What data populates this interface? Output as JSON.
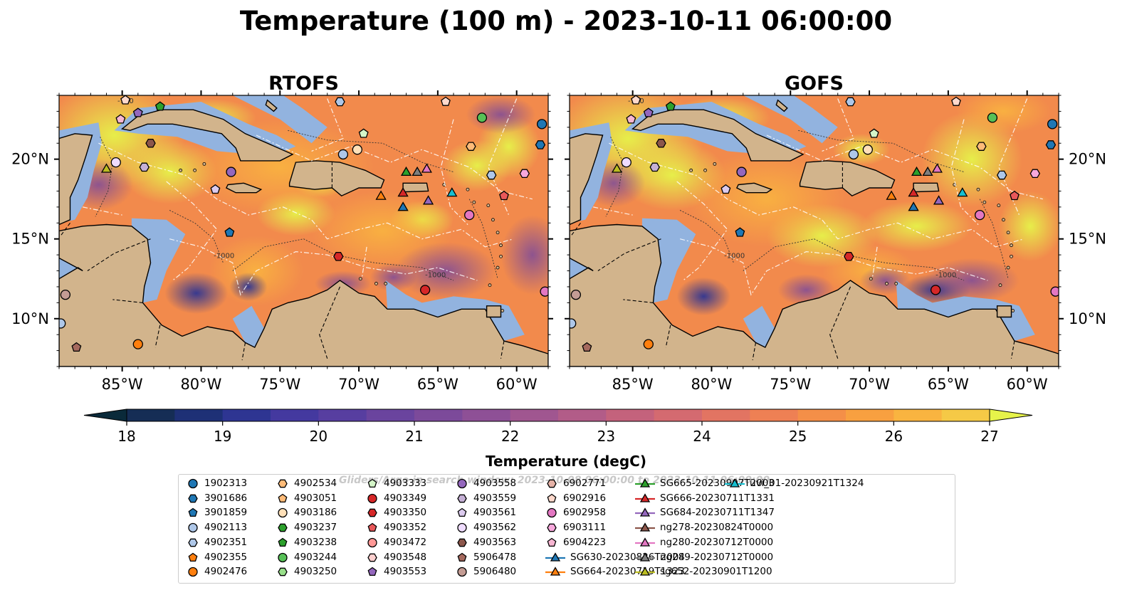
{
  "title": "Temperature (100 m) - 2023-10-11 06:00:00",
  "panels": [
    {
      "title": "RTOFS",
      "variant": "rtofs"
    },
    {
      "title": "GOFS",
      "variant": "gofs"
    }
  ],
  "map_extent": {
    "lon": [
      -89,
      -58
    ],
    "lat": [
      7,
      24
    ]
  },
  "lon_ticks": [
    {
      "value": -85,
      "label": "85°W"
    },
    {
      "value": -80,
      "label": "80°W"
    },
    {
      "value": -75,
      "label": "75°W"
    },
    {
      "value": -70,
      "label": "70°W"
    },
    {
      "value": -65,
      "label": "65°W"
    },
    {
      "value": -60,
      "label": "60°W"
    }
  ],
  "lat_ticks": [
    {
      "value": 10,
      "label": "10°N"
    },
    {
      "value": 15,
      "label": "15°N"
    },
    {
      "value": 20,
      "label": "20°N"
    }
  ],
  "contour_labels": [
    "-1000",
    "-100",
    "-1000"
  ],
  "colorbar": {
    "title": "Temperature (degC)",
    "min": 18,
    "max": 27,
    "step": 0.5,
    "ticks": [
      "18",
      "19",
      "20",
      "21",
      "22",
      "23",
      "24",
      "25",
      "26",
      "27"
    ],
    "colors": [
      "#0a2a3a",
      "#152d55",
      "#1e3076",
      "#2e3592",
      "#44399f",
      "#573ea0",
      "#6a449e",
      "#7c4a9a",
      "#8e5096",
      "#a05690",
      "#b25c88",
      "#c4627c",
      "#d46a70",
      "#e27462",
      "#ee8054",
      "#f48f48",
      "#f8a040",
      "#f9b440",
      "#f5c946",
      "#e6f34a"
    ]
  },
  "legend": {
    "watermark": "Gliders/Argo in search window: 2023-10-08 06:00:00 to 2023-10-11 06:00:00",
    "items": [
      {
        "label": "1902313",
        "marker": "circle",
        "color": "#1f77b4"
      },
      {
        "label": "3901686",
        "marker": "hexagon",
        "color": "#1f77b4"
      },
      {
        "label": "3901859",
        "marker": "pentagon",
        "color": "#1f77b4"
      },
      {
        "label": "4902113",
        "marker": "circle",
        "color": "#aec7e8"
      },
      {
        "label": "4902351",
        "marker": "hexagon",
        "color": "#aec7e8"
      },
      {
        "label": "4902355",
        "marker": "pentagon",
        "color": "#ff7f0e"
      },
      {
        "label": "4902476",
        "marker": "circle",
        "color": "#ff7f0e"
      },
      {
        "label": "4902534",
        "marker": "hexagon",
        "color": "#ffbb78"
      },
      {
        "label": "4903051",
        "marker": "pentagon",
        "color": "#ffbb78"
      },
      {
        "label": "4903186",
        "marker": "circle",
        "color": "#ffe0b8"
      },
      {
        "label": "4903237",
        "marker": "hexagon",
        "color": "#2ca02c"
      },
      {
        "label": "4903238",
        "marker": "pentagon",
        "color": "#2ca02c"
      },
      {
        "label": "4903244",
        "marker": "circle",
        "color": "#57c057"
      },
      {
        "label": "4903250",
        "marker": "hexagon",
        "color": "#98df8a"
      },
      {
        "label": "4903333",
        "marker": "pentagon",
        "color": "#d4f5c8"
      },
      {
        "label": "4903349",
        "marker": "circle",
        "color": "#d62728"
      },
      {
        "label": "4903350",
        "marker": "hexagon",
        "color": "#d62728"
      },
      {
        "label": "4903352",
        "marker": "pentagon",
        "color": "#e8585a"
      },
      {
        "label": "4903472",
        "marker": "circle",
        "color": "#ff9896"
      },
      {
        "label": "4903548",
        "marker": "hexagon",
        "color": "#ffd0cf"
      },
      {
        "label": "4903553",
        "marker": "pentagon",
        "color": "#9467bd"
      },
      {
        "label": "4903558",
        "marker": "circle",
        "color": "#9467bd"
      },
      {
        "label": "4903559",
        "marker": "hexagon",
        "color": "#c5b0d5"
      },
      {
        "label": "4903561",
        "marker": "pentagon",
        "color": "#dccbee"
      },
      {
        "label": "4903562",
        "marker": "circle",
        "color": "#efdcff"
      },
      {
        "label": "4903563",
        "marker": "hexagon",
        "color": "#8c564b"
      },
      {
        "label": "5906478",
        "marker": "pentagon",
        "color": "#a5695e"
      },
      {
        "label": "5906480",
        "marker": "circle",
        "color": "#c49c94"
      },
      {
        "label": "6902771",
        "marker": "hexagon",
        "color": "#e6b3a8"
      },
      {
        "label": "6902916",
        "marker": "pentagon",
        "color": "#ffd9cc"
      },
      {
        "label": "6902958",
        "marker": "circle",
        "color": "#e377c2"
      },
      {
        "label": "6903111",
        "marker": "hexagon",
        "color": "#f7a8dc"
      },
      {
        "label": "6904223",
        "marker": "pentagon",
        "color": "#f7b6d2"
      },
      {
        "label": "SG630-20230826T2004",
        "marker": "triangle-line",
        "color": "#1f77b4"
      },
      {
        "label": "SG664-20230719T1323",
        "marker": "triangle-line",
        "color": "#ff7f0e"
      },
      {
        "label": "SG665-20230907T2003",
        "marker": "triangle-line",
        "color": "#2ca02c"
      },
      {
        "label": "SG666-20230711T1331",
        "marker": "triangle-line",
        "color": "#d62728"
      },
      {
        "label": "SG684-20230711T1347",
        "marker": "triangle-line",
        "color": "#9467bd"
      },
      {
        "label": "ng278-20230824T0000",
        "marker": "triangle-line",
        "color": "#8c564b"
      },
      {
        "label": "ng280-20230712T0000",
        "marker": "triangle-line",
        "color": "#e377c2"
      },
      {
        "label": "ng289-20230712T0000",
        "marker": "triangle-line",
        "color": "#7f7f7f"
      },
      {
        "label": "sg652-20230901T1200",
        "marker": "triangle-line",
        "color": "#bcbd22"
      },
      {
        "label": "uvi_01-20230921T1324",
        "marker": "triangle-line",
        "color": "#17becf"
      }
    ]
  },
  "stations": [
    {
      "lon": -85.1,
      "lat": 22.5,
      "item": "6904223"
    },
    {
      "lon": -84.0,
      "lat": 22.9,
      "item": "4903553"
    },
    {
      "lon": -82.6,
      "lat": 23.3,
      "item": "4903238"
    },
    {
      "lon": -83.2,
      "lat": 21.0,
      "item": "4903563"
    },
    {
      "lon": -85.4,
      "lat": 19.8,
      "item": "4903562"
    },
    {
      "lon": -83.6,
      "lat": 19.5,
      "item": "4903559"
    },
    {
      "lon": -86.0,
      "lat": 19.4,
      "item": "sg652-20230901T1200"
    },
    {
      "lon": -78.1,
      "lat": 19.2,
      "item": "4903558"
    },
    {
      "lon": -79.1,
      "lat": 18.1,
      "item": "4903561"
    },
    {
      "lon": -78.2,
      "lat": 15.4,
      "item": "3901859"
    },
    {
      "lon": -71.0,
      "lat": 20.3,
      "item": "4902113"
    },
    {
      "lon": -70.1,
      "lat": 20.6,
      "item": "4903186"
    },
    {
      "lon": -69.7,
      "lat": 21.6,
      "item": "4903333"
    },
    {
      "lon": -67.0,
      "lat": 19.2,
      "item": "SG665-20230907T2003"
    },
    {
      "lon": -66.3,
      "lat": 19.2,
      "item": "ng289-20230712T0000"
    },
    {
      "lon": -65.7,
      "lat": 19.4,
      "item": "ng280-20230712T0000"
    },
    {
      "lon": -68.6,
      "lat": 17.7,
      "item": "SG664-20230719T1323"
    },
    {
      "lon": -67.2,
      "lat": 17.9,
      "item": "SG666-20230711T1331"
    },
    {
      "lon": -67.2,
      "lat": 17.0,
      "item": "SG630-20230826T2004"
    },
    {
      "lon": -65.6,
      "lat": 17.4,
      "item": "SG684-20230711T1347"
    },
    {
      "lon": -64.1,
      "lat": 17.9,
      "item": "uvi_01-20230921T1324"
    },
    {
      "lon": -64.5,
      "lat": 23.6,
      "item": "6902916"
    },
    {
      "lon": -62.2,
      "lat": 22.6,
      "item": "4903244"
    },
    {
      "lon": -62.9,
      "lat": 20.8,
      "item": "4902534"
    },
    {
      "lon": -58.4,
      "lat": 22.2,
      "item": "1902313"
    },
    {
      "lon": -58.5,
      "lat": 20.9,
      "item": "3901686"
    },
    {
      "lon": -61.6,
      "lat": 19.0,
      "item": "4902351"
    },
    {
      "lon": -59.5,
      "lat": 19.1,
      "item": "6903111"
    },
    {
      "lon": -60.8,
      "lat": 17.7,
      "item": "4903352"
    },
    {
      "lon": -63.0,
      "lat": 16.5,
      "item": "6902958"
    },
    {
      "lon": -71.3,
      "lat": 13.9,
      "item": "4903350"
    },
    {
      "lon": -65.8,
      "lat": 11.8,
      "item": "4903349"
    },
    {
      "lon": -58.2,
      "lat": 11.7,
      "item": "6902958"
    },
    {
      "lon": -88.6,
      "lat": 11.5,
      "item": "5906480"
    },
    {
      "lon": -88.9,
      "lat": 9.7,
      "item": "4902113"
    },
    {
      "lon": -87.9,
      "lat": 8.2,
      "item": "5906478"
    },
    {
      "lon": -84.0,
      "lat": 8.4,
      "item": "4902476"
    },
    {
      "lon": -84.8,
      "lat": 23.7,
      "item": "6902916"
    },
    {
      "lon": -71.2,
      "lat": 23.6,
      "item": "4902351"
    }
  ]
}
